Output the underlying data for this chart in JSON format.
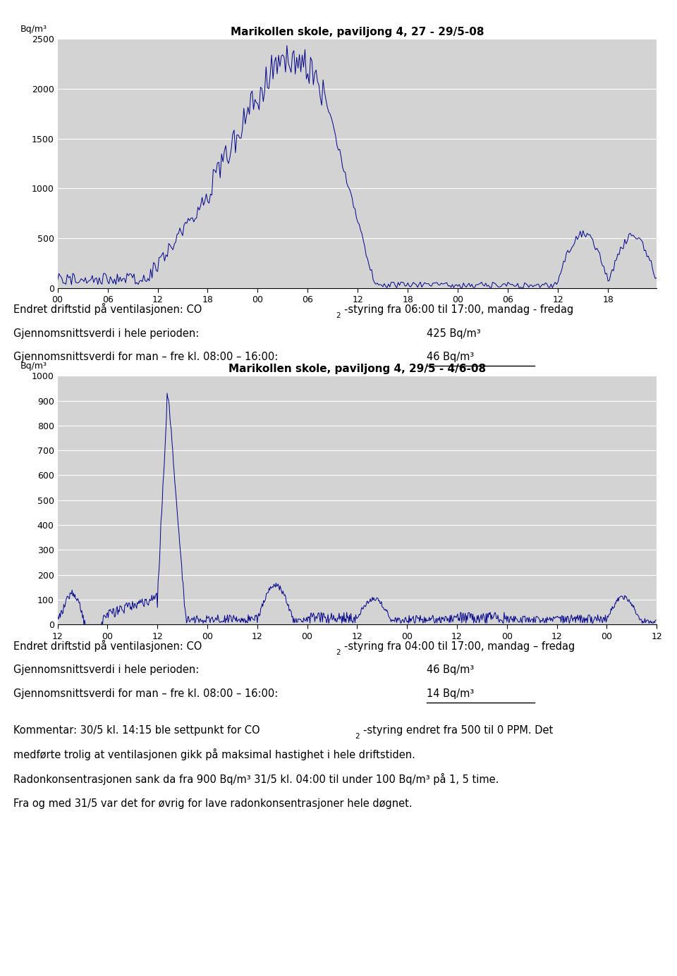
{
  "chart1_title": "Marikollen skole, paviljong 4, 27 - 29/5-08",
  "chart1_ylabel": "Bq/m³",
  "chart1_ylim": [
    0,
    2500
  ],
  "chart1_yticks": [
    0,
    500,
    1000,
    1500,
    2000,
    2500
  ],
  "chart1_xticks": [
    "00",
    "06",
    "12",
    "18",
    "00",
    "06",
    "12",
    "18",
    "00",
    "06",
    "12",
    "18"
  ],
  "chart1_text1a": "Endret driftstid på ventilasjonen: CO",
  "chart1_text1b": "-styring fra 06:00 til 17:00, mandag - fredag",
  "chart1_text2a": "Gjennomsnittsverdi i hele perioden:",
  "chart1_text2b": "425 Bq/m³",
  "chart1_text3a": "Gjennomsnittsverdi for man – fre kl. 08:00 – 16:00:",
  "chart1_text3b": "46 Bq/m³",
  "chart2_title": "Marikollen skole, paviljong 4, 29/5 - 4/6-08",
  "chart2_ylabel": "Bq/m³",
  "chart2_ylim": [
    0,
    1000
  ],
  "chart2_yticks": [
    0,
    100,
    200,
    300,
    400,
    500,
    600,
    700,
    800,
    900,
    1000
  ],
  "chart2_xticks": [
    "12",
    "00",
    "12",
    "00",
    "12",
    "00",
    "12",
    "00",
    "12",
    "00",
    "12",
    "00",
    "12"
  ],
  "chart2_text1a": "Endret driftstid på ventilasjonen: CO",
  "chart2_text1b": "-styring fra 04:00 til 17:00, mandag – fredag",
  "chart2_text2a": "Gjennomsnittsverdi i hele perioden:",
  "chart2_text2b": "46 Bq/m³",
  "chart2_text3a": "Gjennomsnittsverdi for man – fre kl. 08:00 – 16:00:",
  "chart2_text3b": "14 Bq/m³",
  "comment1a": "Kommentar: 30/5 kl. 14:15 ble settpunkt for CO",
  "comment1b": "-styring endret fra 500 til 0 PPM. Det",
  "comment2": "medførte trolig at ventilasjonen gikk på maksimal hastighet i hele driftstiden.",
  "comment3": "Radonkonsentrasjonen sank da fra 900 Bq/m³ 31/5 kl. 04:00 til under 100 Bq/m³ på 1, 5 time.",
  "comment4": "Fra og med 31/5 var det for øvrig for lave radonkonsentrasjoner hele døgnet.",
  "line_color": "#00008B",
  "plot_bg": "#D3D3D3"
}
